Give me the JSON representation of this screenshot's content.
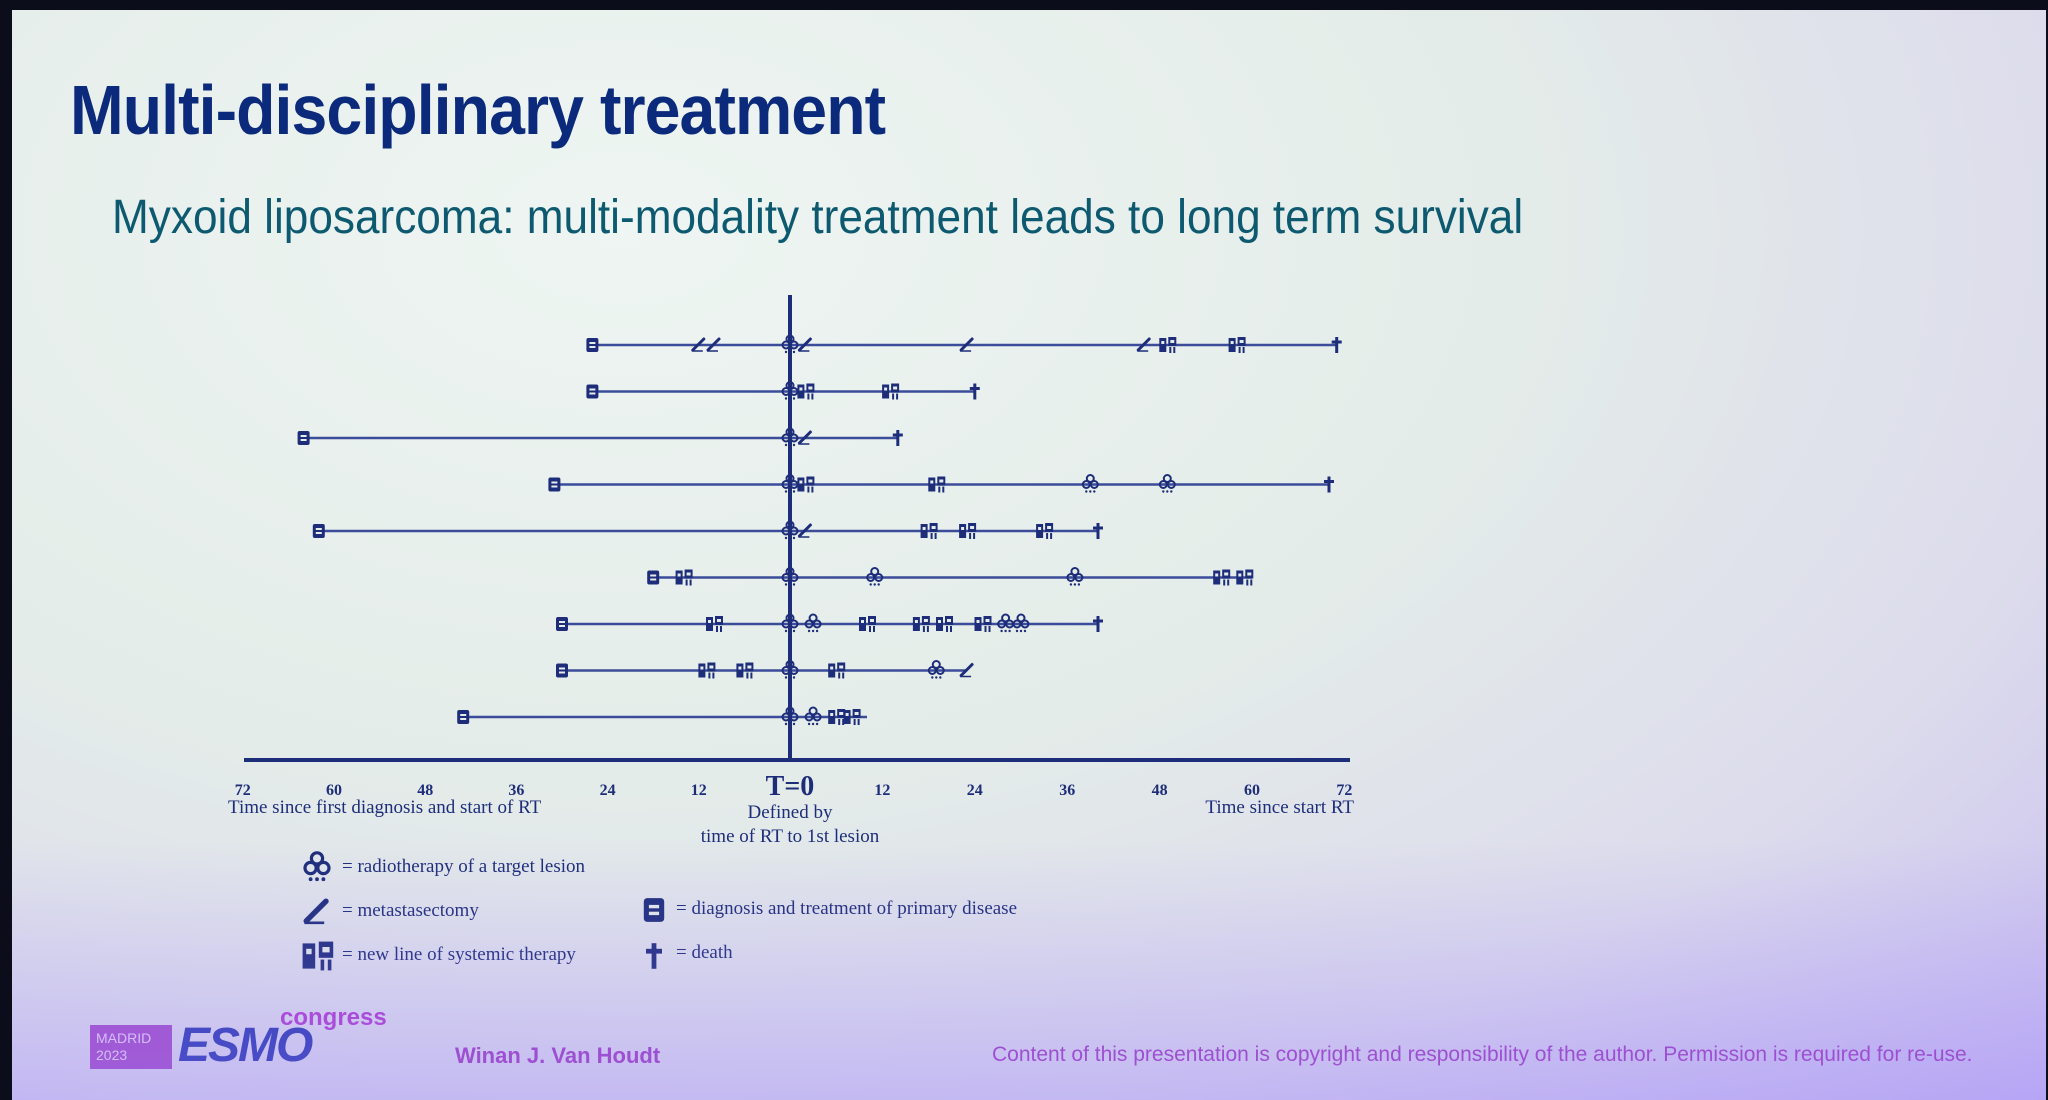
{
  "slide": {
    "title": "Multi-disciplinary treatment",
    "subtitle": "Myxoid liposarcoma: multi-modality treatment leads to long term survival"
  },
  "axis": {
    "zero_label": "T=0",
    "left_ticks": [
      "72",
      "60",
      "48",
      "36",
      "24",
      "12"
    ],
    "right_ticks": [
      "12",
      "24",
      "36",
      "48",
      "60",
      "72"
    ],
    "left_caption": "Time since first diagnosis and start  of RT",
    "center_caption_1": "Defined by",
    "center_caption_2": "time of RT to 1st lesion",
    "right_caption": "Time since start RT"
  },
  "chart_data": {
    "type": "timeline",
    "x_unit": "months",
    "xlim": [
      -72,
      72
    ],
    "markers": {
      "D": "diagnosis and treatment of primary disease",
      "R": "radiotherapy of a target lesion",
      "M": "metastasectomy",
      "S": "new line of systemic therapy",
      "X": "death"
    },
    "patients": [
      {
        "start": -26,
        "end": 71,
        "events": [
          [
            "D",
            -26
          ],
          [
            "M",
            -12
          ],
          [
            "M",
            -10
          ],
          [
            "R",
            0
          ],
          [
            "M",
            2
          ],
          [
            "M",
            23
          ],
          [
            "M",
            46
          ],
          [
            "S",
            49
          ],
          [
            "S",
            58
          ],
          [
            "X",
            71
          ]
        ]
      },
      {
        "start": -26,
        "end": 24,
        "events": [
          [
            "D",
            -26
          ],
          [
            "R",
            0
          ],
          [
            "S",
            2
          ],
          [
            "S",
            13
          ],
          [
            "X",
            24
          ]
        ]
      },
      {
        "start": -64,
        "end": 14,
        "events": [
          [
            "D",
            -64
          ],
          [
            "R",
            0
          ],
          [
            "M",
            2
          ],
          [
            "X",
            14
          ]
        ]
      },
      {
        "start": -31,
        "end": 70,
        "events": [
          [
            "D",
            -31
          ],
          [
            "R",
            0
          ],
          [
            "S",
            2
          ],
          [
            "S",
            19
          ],
          [
            "R",
            39
          ],
          [
            "R",
            49
          ],
          [
            "X",
            70
          ]
        ]
      },
      {
        "start": -62,
        "end": 40,
        "events": [
          [
            "D",
            -62
          ],
          [
            "R",
            0
          ],
          [
            "M",
            2
          ],
          [
            "S",
            18
          ],
          [
            "S",
            23
          ],
          [
            "S",
            33
          ],
          [
            "X",
            40
          ]
        ]
      },
      {
        "start": -18,
        "end": 60,
        "events": [
          [
            "D",
            -18
          ],
          [
            "S",
            -14
          ],
          [
            "R",
            0
          ],
          [
            "R",
            11
          ],
          [
            "R",
            37
          ],
          [
            "S",
            56
          ],
          [
            "S",
            59
          ]
        ]
      },
      {
        "start": -30,
        "end": 40,
        "events": [
          [
            "D",
            -30
          ],
          [
            "S",
            -10
          ],
          [
            "R",
            0
          ],
          [
            "R",
            3
          ],
          [
            "S",
            10
          ],
          [
            "S",
            17
          ],
          [
            "S",
            20
          ],
          [
            "S",
            25
          ],
          [
            "R",
            28
          ],
          [
            "R",
            30
          ],
          [
            "X",
            40
          ]
        ]
      },
      {
        "start": -30,
        "end": 23,
        "events": [
          [
            "D",
            -30
          ],
          [
            "S",
            -11
          ],
          [
            "S",
            -6
          ],
          [
            "R",
            0
          ],
          [
            "S",
            6
          ],
          [
            "R",
            19
          ],
          [
            "M",
            23
          ]
        ]
      },
      {
        "start": -43,
        "end": 10,
        "events": [
          [
            "D",
            -43
          ],
          [
            "R",
            0
          ],
          [
            "R",
            3
          ],
          [
            "S",
            6
          ],
          [
            "S",
            8
          ]
        ]
      }
    ]
  },
  "legend": {
    "radiotherapy": "= radiotherapy of a target lesion",
    "metastasectomy": "= metastasectomy",
    "systemic": "= new line of systemic therapy",
    "diagnosis": "= diagnosis and treatment of primary disease",
    "death": "= death"
  },
  "footer": {
    "author": "Winan J. Van Houdt",
    "copyright": "Content of this presentation is copyright and responsibility of the author. Permission is required for re-use.",
    "logo_city": "MADRID",
    "logo_year": "2023",
    "logo_brand": "ESMO",
    "logo_congress": "congress"
  },
  "colors": {
    "line": "#3b4c9a",
    "axis": "#1d2d7a",
    "marker": "#1d2d7a",
    "title": "#0c2a7c",
    "subtitle": "#0d5a70",
    "footer": "#a03fbf"
  }
}
